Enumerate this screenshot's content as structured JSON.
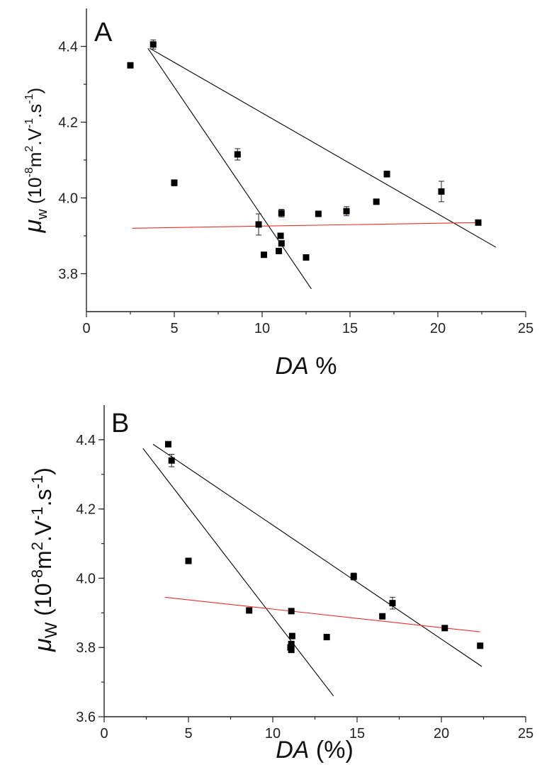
{
  "chart_data": [
    {
      "panel": "A",
      "type": "scatter",
      "xlabel_italic": "DA",
      "xlabel_rest": " %",
      "ylabel_sym": "μ",
      "ylabel_sub": "w",
      "ylabel_unit_a": " (10",
      "ylabel_unit_b": "-8",
      "ylabel_unit_c": "m",
      "ylabel_unit_d": "2",
      "ylabel_unit_e": ".V",
      "ylabel_unit_f": "-1",
      "ylabel_unit_g": ".s",
      "ylabel_unit_h": "-1",
      "ylabel_unit_i": ")",
      "xlim": [
        0,
        25
      ],
      "ylim": [
        3.7,
        4.5
      ],
      "x_ticks": [
        "0",
        "5",
        "10",
        "15",
        "20",
        "25"
      ],
      "y_ticks": [
        "3.8",
        "4.0",
        "4.2",
        "4.4"
      ],
      "y_tick_values": [
        3.8,
        4.0,
        4.2,
        4.4
      ],
      "points": [
        {
          "x": 2.5,
          "y": 4.35,
          "err": 0
        },
        {
          "x": 3.8,
          "y": 4.405,
          "err": 0.012
        },
        {
          "x": 5.0,
          "y": 4.04,
          "err": 0.008
        },
        {
          "x": 8.6,
          "y": 4.115,
          "err": 0.015
        },
        {
          "x": 9.8,
          "y": 3.93,
          "err": 0.028
        },
        {
          "x": 10.1,
          "y": 3.85,
          "err": 0
        },
        {
          "x": 10.95,
          "y": 3.86,
          "err": 0
        },
        {
          "x": 11.05,
          "y": 3.9,
          "err": 0
        },
        {
          "x": 11.1,
          "y": 3.88,
          "err": 0
        },
        {
          "x": 11.1,
          "y": 3.96,
          "err": 0.01
        },
        {
          "x": 12.5,
          "y": 3.843,
          "err": 0
        },
        {
          "x": 13.2,
          "y": 3.958,
          "err": 0
        },
        {
          "x": 14.8,
          "y": 3.965,
          "err": 0.012
        },
        {
          "x": 16.5,
          "y": 3.99,
          "err": 0
        },
        {
          "x": 17.1,
          "y": 4.063,
          "err": 0.008
        },
        {
          "x": 20.2,
          "y": 4.017,
          "err": 0.027
        },
        {
          "x": 22.3,
          "y": 3.935,
          "err": 0
        }
      ],
      "fit_lines": [
        {
          "x1": 3.6,
          "y1": 4.395,
          "x2": 23.3,
          "y2": 3.87,
          "color": "#000000"
        },
        {
          "x1": 3.5,
          "y1": 4.395,
          "x2": 12.8,
          "y2": 3.76,
          "color": "#000000"
        },
        {
          "x1": 2.6,
          "y1": 3.92,
          "x2": 22.3,
          "y2": 3.935,
          "color": "#e8302a"
        }
      ]
    },
    {
      "panel": "B",
      "type": "scatter",
      "xlabel_italic": "DA",
      "xlabel_rest": " (%)",
      "ylabel_sym": "μ",
      "ylabel_sub": "W",
      "ylabel_unit_a": " (10",
      "ylabel_unit_b": "-8",
      "ylabel_unit_c": "m",
      "ylabel_unit_d": "2",
      "ylabel_unit_e": ".V",
      "ylabel_unit_f": "-1",
      "ylabel_unit_g": ".s",
      "ylabel_unit_h": "-1",
      "ylabel_unit_i": ")",
      "xlim": [
        0,
        25
      ],
      "ylim": [
        3.6,
        4.5
      ],
      "x_ticks": [
        "0",
        "5",
        "10",
        "15",
        "20",
        "25"
      ],
      "y_ticks": [
        "3.6",
        "3.8",
        "4.0",
        "4.2",
        "4.4"
      ],
      "y_tick_values": [
        3.6,
        3.8,
        4.0,
        4.2,
        4.4
      ],
      "points": [
        {
          "x": 3.8,
          "y": 4.387,
          "err": 0
        },
        {
          "x": 4.0,
          "y": 4.34,
          "err": 0.018
        },
        {
          "x": 5.0,
          "y": 4.05,
          "err": 0
        },
        {
          "x": 8.6,
          "y": 3.907,
          "err": 0.008
        },
        {
          "x": 11.05,
          "y": 3.8,
          "err": 0
        },
        {
          "x": 11.1,
          "y": 3.793,
          "err": 0
        },
        {
          "x": 11.1,
          "y": 3.81,
          "err": 0
        },
        {
          "x": 11.15,
          "y": 3.833,
          "err": 0
        },
        {
          "x": 11.1,
          "y": 3.905,
          "err": 0
        },
        {
          "x": 13.2,
          "y": 3.83,
          "err": 0
        },
        {
          "x": 14.8,
          "y": 4.005,
          "err": 0.01
        },
        {
          "x": 16.5,
          "y": 3.89,
          "err": 0
        },
        {
          "x": 17.1,
          "y": 3.928,
          "err": 0.017
        },
        {
          "x": 20.2,
          "y": 3.856,
          "err": 0
        },
        {
          "x": 22.3,
          "y": 3.805,
          "err": 0
        }
      ],
      "fit_lines": [
        {
          "x1": 2.9,
          "y1": 4.387,
          "x2": 22.4,
          "y2": 3.745,
          "color": "#000000"
        },
        {
          "x1": 2.3,
          "y1": 4.375,
          "x2": 13.6,
          "y2": 3.66,
          "color": "#000000"
        },
        {
          "x1": 3.6,
          "y1": 3.945,
          "x2": 22.3,
          "y2": 3.845,
          "color": "#e8302a"
        }
      ]
    }
  ]
}
